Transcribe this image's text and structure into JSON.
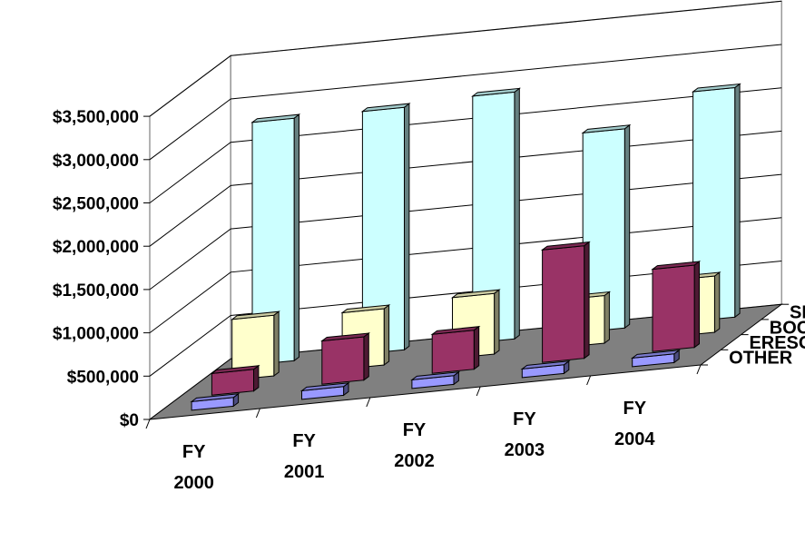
{
  "chart_data": {
    "type": "bar",
    "subtype": "3d-column",
    "title": "",
    "xlabel": "",
    "ylabel": "",
    "categories": [
      "FY 2000",
      "FY 2001",
      "FY 2002",
      "FY 2003",
      "FY 2004"
    ],
    "category_lines": [
      [
        "FY",
        "2000"
      ],
      [
        "FY",
        "2001"
      ],
      [
        "FY",
        "2002"
      ],
      [
        "FY",
        "2003"
      ],
      [
        "FY",
        "2004"
      ]
    ],
    "ylim": [
      0,
      3500000
    ],
    "yticks": [
      0,
      500000,
      1000000,
      1500000,
      2000000,
      2500000,
      3000000,
      3500000
    ],
    "ytick_labels": [
      "$0",
      "$500,000",
      "$1,000,000",
      "$1,500,000",
      "$2,000,000",
      "$2,500,000",
      "$3,000,000",
      "$3,500,000"
    ],
    "series": [
      {
        "name": "OTHER",
        "values": [
          100000,
          100000,
          100000,
          100000,
          100000
        ]
      },
      {
        "name": "ERESOURCES",
        "values": [
          250000,
          500000,
          450000,
          1300000,
          950000
        ]
      },
      {
        "name": "BOOKS",
        "values": [
          700000,
          650000,
          700000,
          550000,
          650000
        ]
      },
      {
        "name": "SERIALS",
        "values": [
          2800000,
          2800000,
          2850000,
          2300000,
          2650000
        ]
      }
    ],
    "colors": {
      "OTHER": "#9999ff",
      "ERESOURCES": "#993366",
      "BOOKS": "#ffffcc",
      "SERIALS": "#ccffff",
      "floor": "#808080",
      "walls": "#ffffff",
      "gridlines": "#000000"
    },
    "grid": true,
    "legend": "none (series named along depth axis)"
  }
}
